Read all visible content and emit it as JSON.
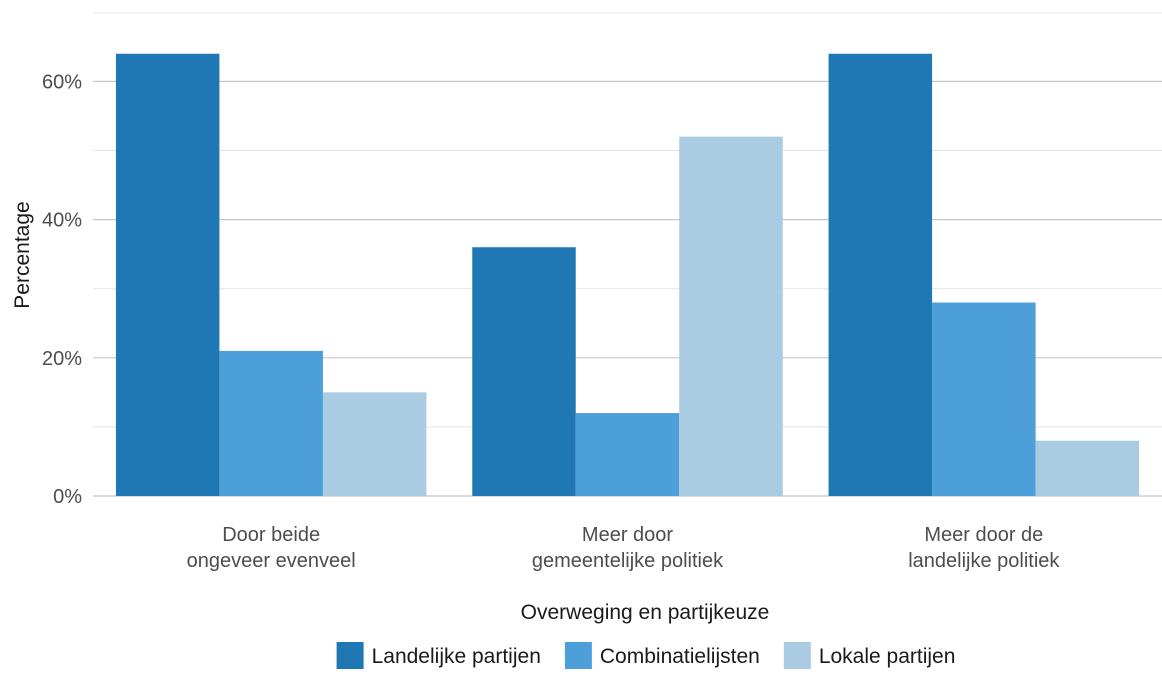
{
  "chart_data": {
    "type": "bar",
    "title": "",
    "xlabel": "Overweging en partijkeuze",
    "ylabel": "Percentage",
    "ylim": [
      0,
      66
    ],
    "yticks": [
      {
        "value": 0,
        "label": "0%"
      },
      {
        "value": 20,
        "label": "20%"
      },
      {
        "value": 40,
        "label": "40%"
      },
      {
        "value": 60,
        "label": "60%"
      }
    ],
    "minor_grid": [
      10,
      30,
      50
    ],
    "grid": true,
    "legend_position": "bottom",
    "categories": [
      [
        "Door beide",
        "ongeveer evenveel"
      ],
      [
        "Meer door",
        "gemeentelijke politiek"
      ],
      [
        "Meer door de",
        "landelijke politiek"
      ]
    ],
    "series": [
      {
        "name": "Landelijke partijen",
        "color": "#1f78b4",
        "values": [
          64,
          36,
          64
        ]
      },
      {
        "name": "Combinatielijsten",
        "color": "#4c9fd8",
        "values": [
          21,
          12,
          28
        ]
      },
      {
        "name": "Lokale partijen",
        "color": "#a9cce3",
        "values": [
          15,
          52,
          8
        ]
      }
    ]
  }
}
